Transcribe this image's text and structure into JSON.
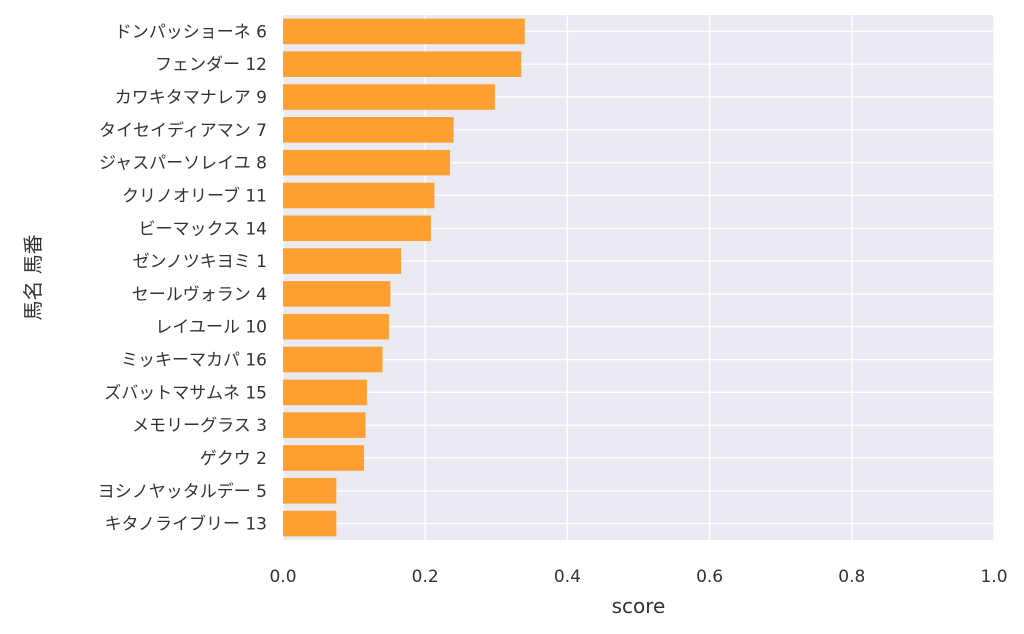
{
  "chart_data": {
    "type": "bar",
    "orientation": "horizontal",
    "title": "",
    "xlabel": "score",
    "ylabel": "馬名 馬番",
    "xlim": [
      0.0,
      1.0
    ],
    "xticks": [
      "0.0",
      "0.2",
      "0.4",
      "0.6",
      "0.8",
      "1.0"
    ],
    "grid": true,
    "bar_color": "#FF9B26",
    "background_color": "#EAEAF2",
    "categories": [
      "ドンパッショーネ 6",
      "フェンダー 12",
      "カワキタマナレア 9",
      "タイセイディアマン 7",
      "ジャスパーソレイユ 8",
      "クリノオリーブ 11",
      "ビーマックス 14",
      "ゼンノツキヨミ 1",
      "セールヴォラン 4",
      "レイユール 10",
      "ミッキーマカパ 16",
      "ズバットマサムネ 15",
      "メモリーグラス 3",
      "ゲクウ 2",
      "ヨシノヤッタルデー 5",
      "キタノライブリー 13"
    ],
    "values": [
      0.34,
      0.335,
      0.298,
      0.24,
      0.235,
      0.213,
      0.208,
      0.166,
      0.151,
      0.149,
      0.14,
      0.118,
      0.116,
      0.114,
      0.075,
      0.075
    ]
  }
}
